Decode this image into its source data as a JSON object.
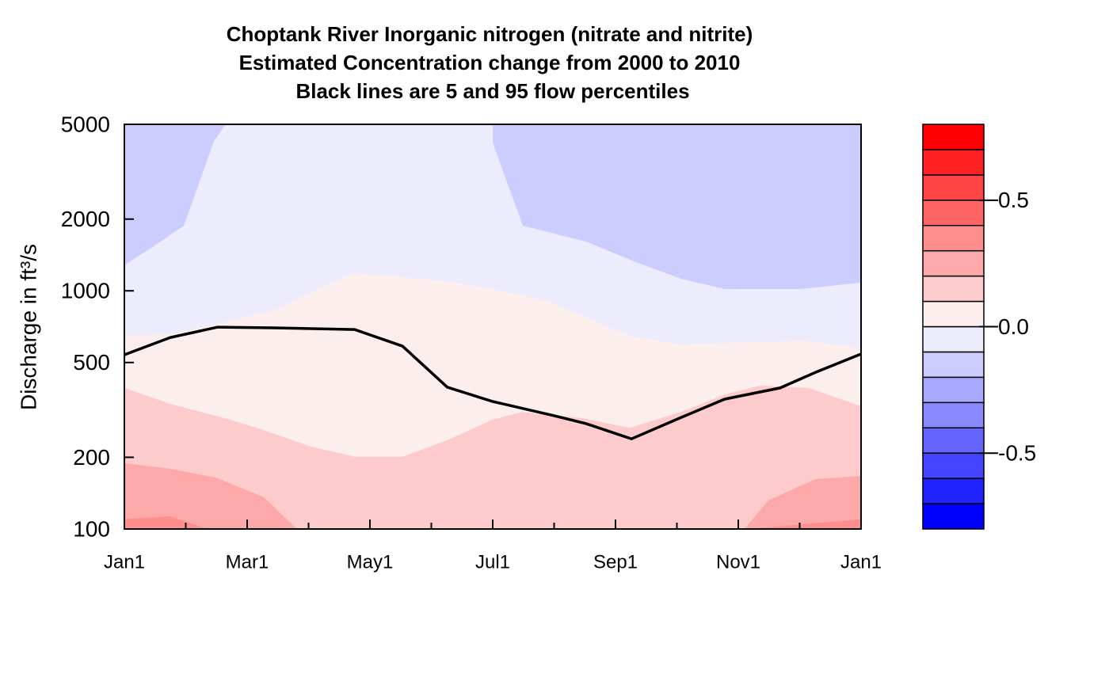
{
  "chart_data": {
    "type": "contour",
    "title": [
      "Choptank River  Inorganic nitrogen (nitrate and nitrite)",
      "Estimated Concentration change from 2000 to 2010",
      "Black lines are 5 and 95 flow percentiles"
    ],
    "ylabel": "Discharge in ft³/s",
    "xlim": [
      0,
      12
    ],
    "xticks": [
      {
        "value": 0,
        "label": "Jan1"
      },
      {
        "value": 2,
        "label": "Mar1"
      },
      {
        "value": 4,
        "label": "May1"
      },
      {
        "value": 6,
        "label": "Jul1"
      },
      {
        "value": 8,
        "label": "Sep1"
      },
      {
        "value": 10,
        "label": "Nov1"
      },
      {
        "value": 12,
        "label": "Jan1"
      }
    ],
    "xminorticks": [
      1,
      3,
      5,
      7,
      9,
      11
    ],
    "ylim": [
      100,
      5000
    ],
    "yticks": [
      100,
      200,
      500,
      1000,
      2000,
      5000
    ],
    "ylog": true,
    "colorbar": {
      "levels": [
        -0.8,
        -0.7,
        -0.6,
        -0.5,
        -0.4,
        -0.3,
        -0.2,
        -0.1,
        0,
        0.1,
        0.2,
        0.3,
        0.4,
        0.5,
        0.6,
        0.7,
        0.8
      ],
      "colors": [
        "#0000ff",
        "#2222ff",
        "#4444ff",
        "#6464ff",
        "#8888ff",
        "#a8a8ff",
        "#ccccff",
        "#ececfc",
        "#fdeeee",
        "#fdcbcb",
        "#fda9a9",
        "#ff8e8e",
        "#ff6464",
        "#ff4444",
        "#ff2222",
        "#ff0000"
      ],
      "ticks": [
        -0.5,
        {
          "value": 0,
          "label": "0.0"
        },
        0.5
      ]
    },
    "contours": [
      {
        "level": 0.3,
        "x": [
          0,
          0.75,
          1.35,
          10.17,
          12
        ],
        "y": [
          110,
          113,
          100,
          100,
          110
        ]
      },
      {
        "level": 0.2,
        "x": [
          0,
          0.75,
          1.5,
          2.27,
          2.81,
          10.1,
          10.49,
          11.26,
          12
        ],
        "y": [
          189,
          179,
          164,
          136,
          100,
          100,
          132,
          162,
          167
        ]
      },
      {
        "level": 0.1,
        "x": [
          0,
          0.75,
          1.72,
          2.23,
          3.01,
          3.75,
          4.53,
          5.26,
          6.0,
          6.49,
          7.46,
          8.23,
          9.07,
          9.78,
          10.36,
          11.14,
          12
        ],
        "y": [
          391,
          335,
          288,
          262,
          223,
          201,
          201,
          236,
          288,
          310,
          292,
          266,
          310,
          367,
          400,
          391,
          328
        ]
      },
      {
        "level": 0,
        "x": [
          0,
          0.75,
          1.72,
          2.43,
          3.01,
          3.75,
          5.26,
          6.0,
          6.88,
          7.65,
          8.23,
          9.07,
          9.78,
          11.07,
          12
        ],
        "y": [
          643,
          657,
          749,
          827,
          979,
          1185,
          1098,
          1017,
          907,
          749,
          643,
          595,
          604,
          618,
          573
        ]
      },
      {
        "level": -0.1,
        "x": [
          0,
          0.49,
          0.97,
          1.46,
          1.65,
          6.0,
          6.0,
          6.49,
          7.52,
          8.3,
          9.07,
          9.78,
          11.01,
          12
        ],
        "y": [
          1280,
          1549,
          1876,
          4256,
          5000,
          5000,
          4190,
          1876,
          1610,
          1330,
          1123,
          1017,
          1017,
          1081
        ]
      }
    ],
    "series": [
      {
        "color": "#000000",
        "x": [
          0,
          0.75,
          1.52,
          2.43,
          3.75,
          4.53,
          5.26,
          6.0,
          7.0,
          7.52,
          8.26,
          9.07,
          9.78,
          10.68,
          11.26,
          12
        ],
        "values": [
          539,
          637,
          704,
          699,
          688,
          586,
          394,
          343,
          299,
          277,
          239,
          294,
          351,
          391,
          455,
          543
        ]
      }
    ]
  }
}
